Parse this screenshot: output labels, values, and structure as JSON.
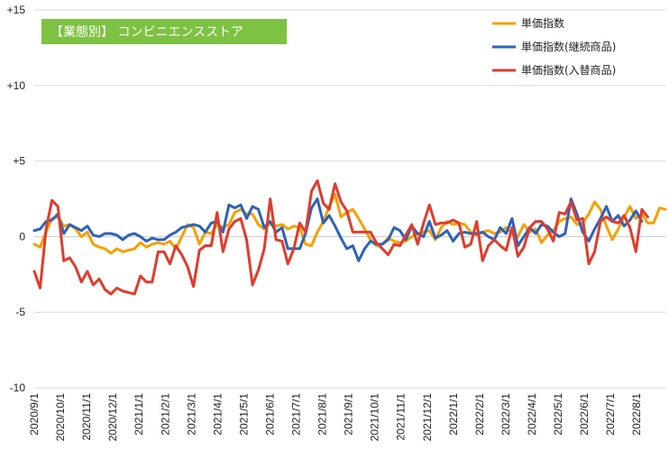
{
  "chart_data": {
    "type": "line",
    "title": "【業態別】 コンビニエンスストア",
    "ylim": [
      -10,
      15
    ],
    "y_ticks": [
      "+15",
      "+10",
      "+5",
      "0",
      "-5",
      "-10"
    ],
    "x_labels": [
      "2020/9/1",
      "2020/10/1",
      "2020/11/1",
      "2020/12/1",
      "2021/1/1",
      "2021/2/1",
      "2021/3/1",
      "2021/4/1",
      "2021/5/1",
      "2021/6/1",
      "2021/7/1",
      "2021/8/1",
      "2021/9/1",
      "2021/10/1",
      "2021/11/1",
      "2021/12/1",
      "2022/1/1",
      "2022/2/1",
      "2022/3/1",
      "2022/4/1",
      "2022/5/1",
      "2022/6/1",
      "2022/7/1",
      "2022/8/1"
    ],
    "grid": true,
    "legend_position": "top-right",
    "series": [
      {
        "name": "単価指数",
        "color": "#f5a000",
        "values": [
          -0.5,
          -0.7,
          0.3,
          1.2,
          1.3,
          0.7,
          0.8,
          0.5,
          0.0,
          0.3,
          -0.5,
          -0.7,
          -0.8,
          -1.1,
          -0.8,
          -1.0,
          -0.9,
          -0.8,
          -0.4,
          -0.7,
          -0.5,
          -0.4,
          -0.5,
          -0.3,
          -0.8,
          0.0,
          0.8,
          0.6,
          -0.5,
          0.3,
          0.2,
          0.8,
          0.6,
          0.8,
          1.6,
          1.8,
          1.5,
          1.5,
          0.8,
          0.5,
          0.9,
          0.7,
          0.8,
          0.5,
          0.7,
          0.6,
          -0.5,
          -0.6,
          0.3,
          1.0,
          2.0,
          2.8,
          1.3,
          1.6,
          1.8,
          1.2,
          0.5,
          -0.2,
          -0.6,
          -0.5,
          -0.1,
          -0.3,
          -0.4,
          -0.3,
          0.0,
          0.2,
          0.3,
          0.4,
          -0.2,
          0.6,
          1.0,
          0.8,
          0.9,
          0.8,
          0.3,
          0.1,
          0.3,
          0.4,
          0.2,
          0.3,
          0.6,
          0.2,
          0.0,
          0.8,
          0.3,
          0.5,
          -0.4,
          0.1,
          0.4,
          1.0,
          1.2,
          1.3,
          0.8,
          0.9,
          1.5,
          2.3,
          1.8,
          0.7,
          -0.2,
          0.5,
          1.3,
          2.0,
          1.2,
          1.5,
          0.9,
          0.9,
          1.9,
          1.8
        ]
      },
      {
        "name": "単価指数(継続商品)",
        "color": "#2e62b8",
        "values": [
          0.4,
          0.5,
          1.0,
          1.1,
          1.5,
          0.2,
          0.8,
          0.6,
          0.4,
          0.7,
          0.1,
          0.0,
          0.2,
          0.2,
          0.1,
          -0.2,
          0.1,
          0.2,
          0.0,
          -0.3,
          -0.1,
          -0.2,
          -0.2,
          0.1,
          0.3,
          0.6,
          0.7,
          0.8,
          0.7,
          0.3,
          0.9,
          1.0,
          0.3,
          2.1,
          1.9,
          2.1,
          1.2,
          2.0,
          1.8,
          0.6,
          1.0,
          0.3,
          0.6,
          -0.8,
          -0.8,
          -0.8,
          0.2,
          1.9,
          2.5,
          0.9,
          1.4,
          0.7,
          -0.1,
          -0.8,
          -0.6,
          -1.6,
          -0.8,
          -0.3,
          -0.5,
          -0.5,
          -0.2,
          0.6,
          0.4,
          -0.2,
          0.7,
          0.2,
          0.0,
          1.0,
          -0.1,
          0.1,
          0.4,
          -0.3,
          0.2,
          0.3,
          0.2,
          0.2,
          0.3,
          0.0,
          -0.2,
          0.6,
          0.2,
          1.2,
          -0.6,
          0.0,
          0.6,
          0.2,
          0.8,
          0.7,
          0.3,
          0.0,
          0.2,
          2.5,
          1.5,
          0.3,
          -0.3,
          0.5,
          1.2,
          2.0,
          1.0,
          1.4,
          0.7,
          1.1,
          1.7,
          1.0
        ]
      },
      {
        "name": "単価指数(入替商品)",
        "color": "#e03c2c",
        "values": [
          -2.3,
          -3.4,
          0.5,
          2.4,
          2.0,
          -1.6,
          -1.4,
          -2.0,
          -3.0,
          -2.3,
          -3.2,
          -2.8,
          -3.5,
          -3.8,
          -3.4,
          -3.6,
          -3.7,
          -3.8,
          -2.6,
          -3.0,
          -3.0,
          -1.0,
          -1.0,
          -1.8,
          -0.6,
          -1.2,
          -2.0,
          -3.3,
          -0.9,
          -0.6,
          -0.6,
          1.6,
          -1.0,
          0.5,
          1.0,
          1.2,
          -0.2,
          -3.2,
          -2.2,
          -0.8,
          2.5,
          -0.2,
          -0.3,
          -1.8,
          -0.8,
          0.9,
          0.3,
          3.0,
          3.7,
          2.2,
          1.8,
          3.5,
          2.3,
          1.7,
          0.3,
          0.3,
          0.3,
          0.3,
          -0.4,
          -0.8,
          -1.2,
          -0.5,
          -0.6,
          0.1,
          0.8,
          -0.5,
          0.9,
          2.1,
          0.8,
          0.9,
          0.9,
          1.1,
          0.9,
          -0.7,
          -0.5,
          1.0,
          -1.6,
          -0.6,
          -0.2,
          -0.6,
          -0.9,
          0.6,
          -1.3,
          -0.7,
          0.6,
          1.0,
          1.0,
          0.5,
          -0.3,
          1.6,
          1.5,
          2.3,
          1.1,
          1.2,
          -1.8,
          -1.0,
          1.0,
          1.3,
          1.0,
          0.9,
          1.4,
          0.6,
          -1.0,
          1.8,
          1.3
        ]
      }
    ]
  }
}
